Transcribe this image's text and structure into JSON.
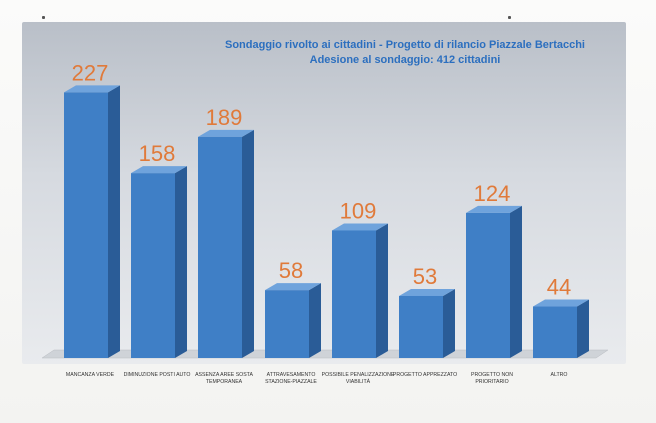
{
  "chart_data": {
    "type": "bar",
    "title": "Sondaggio rivolto ai cittadini - Progetto di rilancio Piazzale Bertacchi",
    "subtitle": "Adesione al sondaggio: 412 cittadini",
    "categories": [
      [
        "MANCANZA VERDE"
      ],
      [
        "DIMINUZIONE POSTI AUTO"
      ],
      [
        "ASSENZA AREE SOSTA",
        "TEMPORANEA"
      ],
      [
        "ATTRAVESAMENTO",
        "STAZIONE-PIAZZALE"
      ],
      [
        "POSSIBILE PENALIZZAZIONE",
        "VIABILITÀ"
      ],
      [
        "PROGETTO APPREZZATO"
      ],
      [
        "PROGETTO NON",
        "PRIORITARIO"
      ],
      [
        "ALTRO"
      ]
    ],
    "values": [
      227,
      158,
      189,
      58,
      109,
      53,
      124,
      44
    ],
    "ylim": [
      0,
      260
    ],
    "grid": false,
    "legend": "none",
    "bar_color": "#3f7fc6",
    "value_label_color": "#e07a3a"
  }
}
